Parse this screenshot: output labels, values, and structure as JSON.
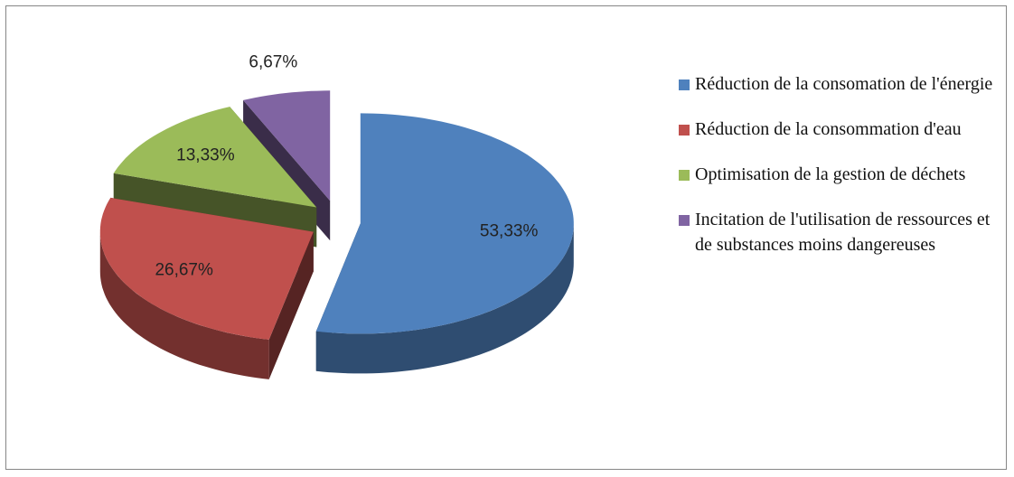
{
  "chart_data": {
    "type": "pie",
    "categories": [
      "Réduction de la consomation de l'énergie",
      "Réduction de la consommation d'eau",
      "Optimisation de la gestion de déchets",
      "Incitation de l'utilisation de ressources et de substances moins dangereuses"
    ],
    "values": [
      53.33,
      26.67,
      13.33,
      6.67
    ],
    "value_labels": [
      "53,33%",
      "26,67%",
      "13,33%",
      "6,67%"
    ],
    "colors": [
      "#4f81bd",
      "#c0504d",
      "#9bbb59",
      "#8064a2"
    ],
    "legend": "right"
  }
}
